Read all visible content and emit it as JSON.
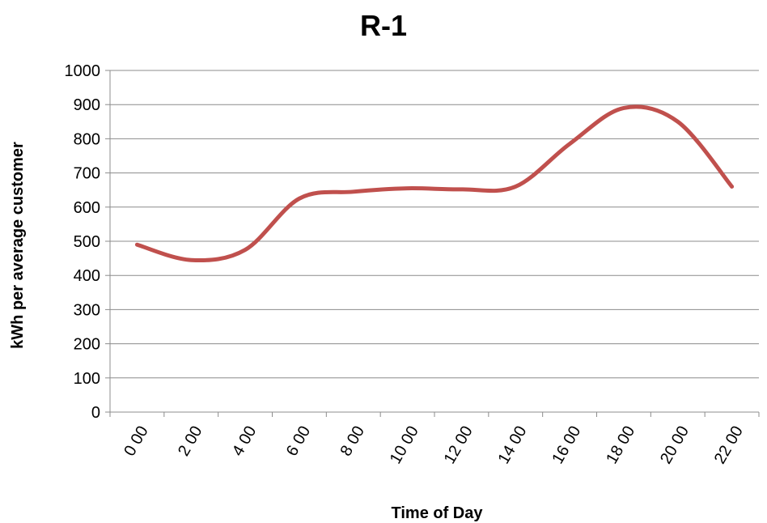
{
  "chart_data": {
    "type": "line",
    "title": "R-1",
    "xlabel": "Time of Day",
    "ylabel": "kWh per average customer",
    "ylim": [
      0,
      1000
    ],
    "y_ticks": [
      "0",
      "100",
      "200",
      "300",
      "400",
      "500",
      "600",
      "700",
      "800",
      "900",
      "1000"
    ],
    "categories": [
      "0:00",
      "2:00",
      "4:00",
      "6:00",
      "8:00",
      "10:00",
      "12:00",
      "14:00",
      "16:00",
      "18:00",
      "20:00",
      "22:00"
    ],
    "x_tick_labels": [
      "0 00",
      "2 00",
      "4 00",
      "6 00",
      "8 00",
      "10 00",
      "12 00",
      "14 00",
      "16 00",
      "18 00",
      "20 00",
      "22 00"
    ],
    "grid": true,
    "legend": "none",
    "series": [
      {
        "color": "#c0504d",
        "values": [
          490,
          445,
          475,
          625,
          645,
          655,
          652,
          660,
          785,
          890,
          850,
          660
        ]
      }
    ]
  }
}
